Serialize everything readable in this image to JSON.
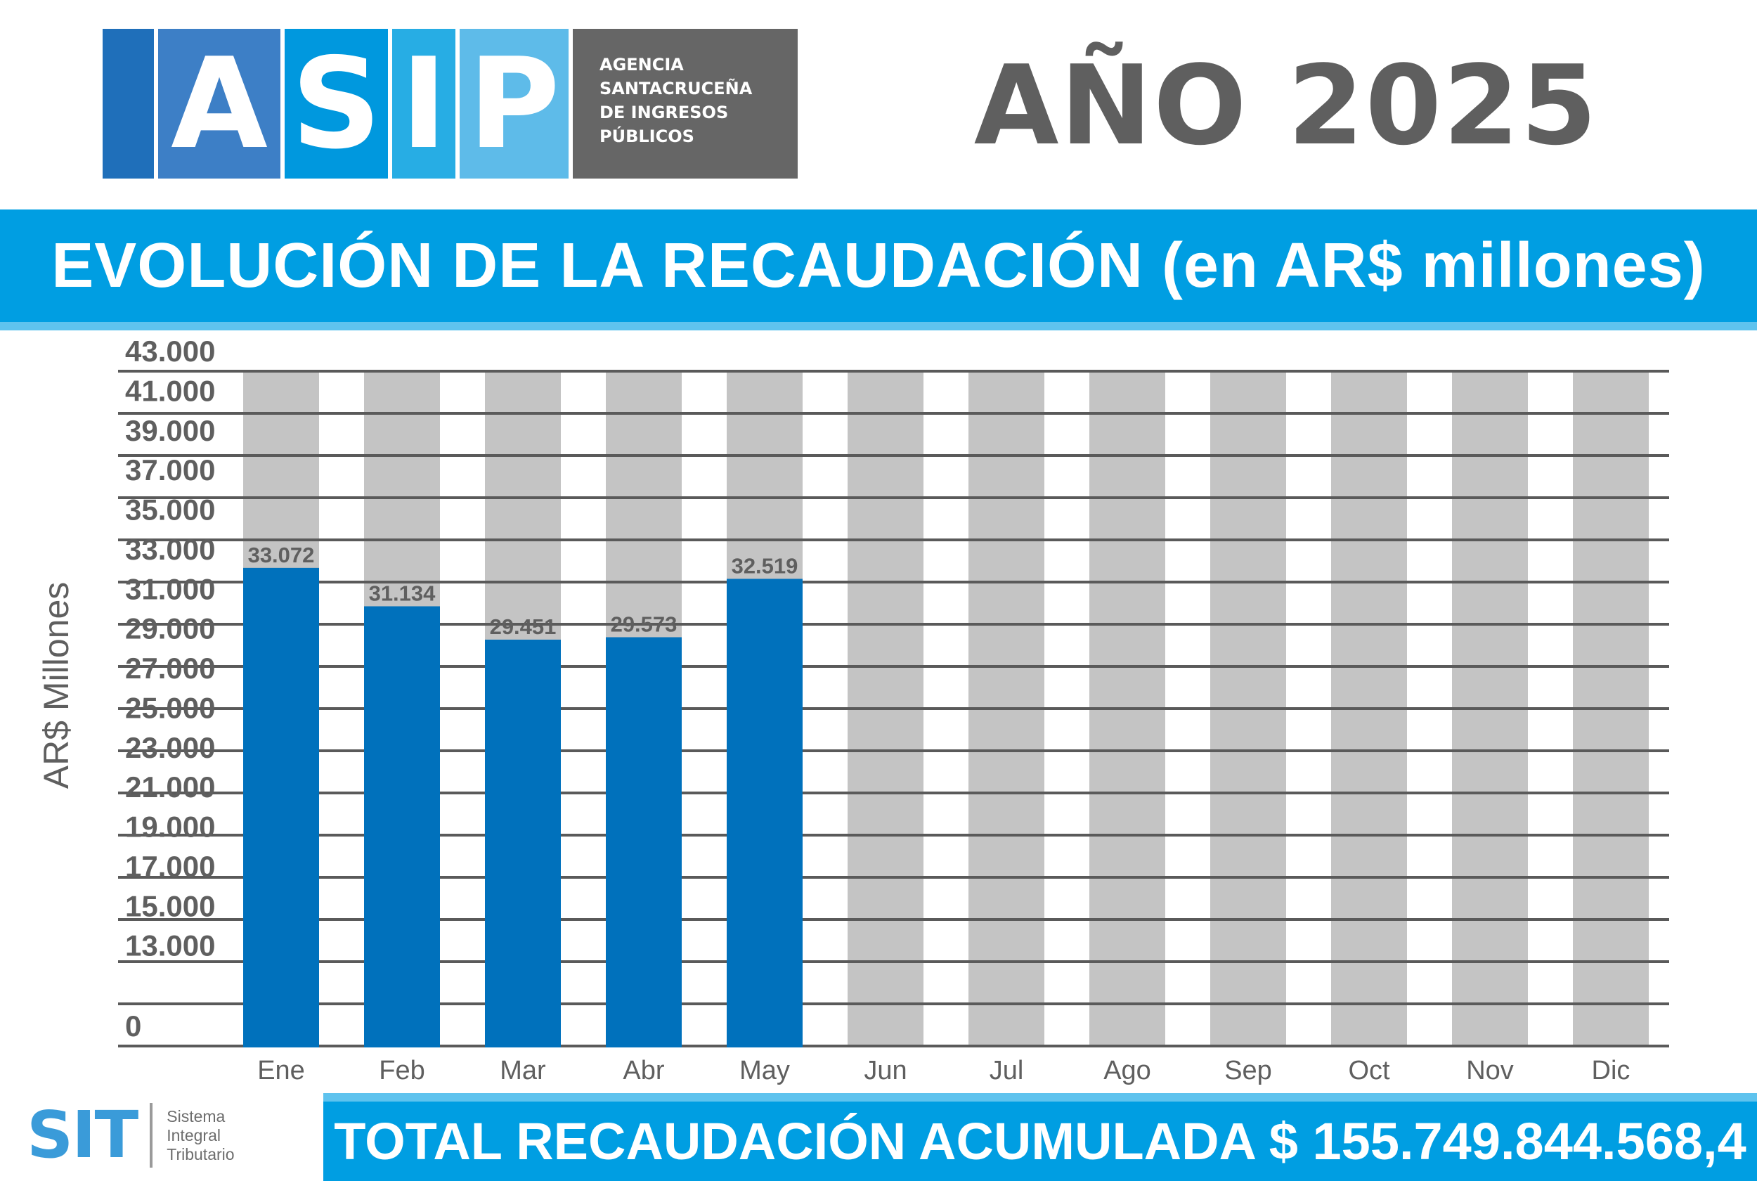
{
  "logo": {
    "letters": [
      "A",
      "S",
      "I",
      "P"
    ],
    "agency_lines": [
      "AGENCIA",
      "SANTACRUCEÑA",
      "DE INGRESOS",
      "PÚBLICOS"
    ],
    "tile_colors": [
      "#1f6fba",
      "#3d7fc6",
      "#0098de",
      "#27ade4",
      "#5ebbe9"
    ]
  },
  "year": "AÑO 2025",
  "title": "EVOLUCIÓN DE LA RECAUDACIÓN (en AR$ millones)",
  "chart_data": {
    "type": "bar",
    "title": "EVOLUCIÓN DE LA RECAUDACIÓN (en AR$ millones)",
    "xlabel": "",
    "ylabel": "AR$ Millones",
    "categories": [
      "Ene",
      "Feb",
      "Mar",
      "Abr",
      "May",
      "Jun",
      "Jul",
      "Ago",
      "Sep",
      "Oct",
      "Nov",
      "Dic"
    ],
    "values": [
      33072,
      31134,
      29451,
      29573,
      32519,
      null,
      null,
      null,
      null,
      null,
      null,
      null
    ],
    "value_labels": [
      "33.072",
      "31.134",
      "29.451",
      "29.573",
      "32.519",
      "",
      "",
      "",
      "",
      "",
      "",
      ""
    ],
    "yticks": [
      0,
      13000,
      15000,
      17000,
      19000,
      21000,
      23000,
      25000,
      27000,
      29000,
      31000,
      33000,
      35000,
      37000,
      39000,
      41000,
      43000
    ],
    "ytick_labels": [
      "0",
      "13.000",
      "15.000",
      "17.000",
      "19.000",
      "21.000",
      "23.000",
      "25.000",
      "27.000",
      "29.000",
      "31.000",
      "33.000",
      "35.000",
      "37.000",
      "39.000",
      "41.000",
      "43.000"
    ],
    "ylim": [
      11000,
      43000
    ],
    "axis_break": "0 shown at bottom, axis jumps to 13.000",
    "grid": true,
    "legend": "none",
    "colors": {
      "bar": "#0071bc",
      "background_bar": "#c4c4c4",
      "grid": "#5a5a5a",
      "text": "#5f5f5f"
    }
  },
  "sit": {
    "word": "SIT",
    "lines": [
      "Sistema",
      "Integral",
      "Tributario"
    ]
  },
  "total": "TOTAL RECAUDACIÓN ACUMULADA $ 155.749.844.568,4"
}
